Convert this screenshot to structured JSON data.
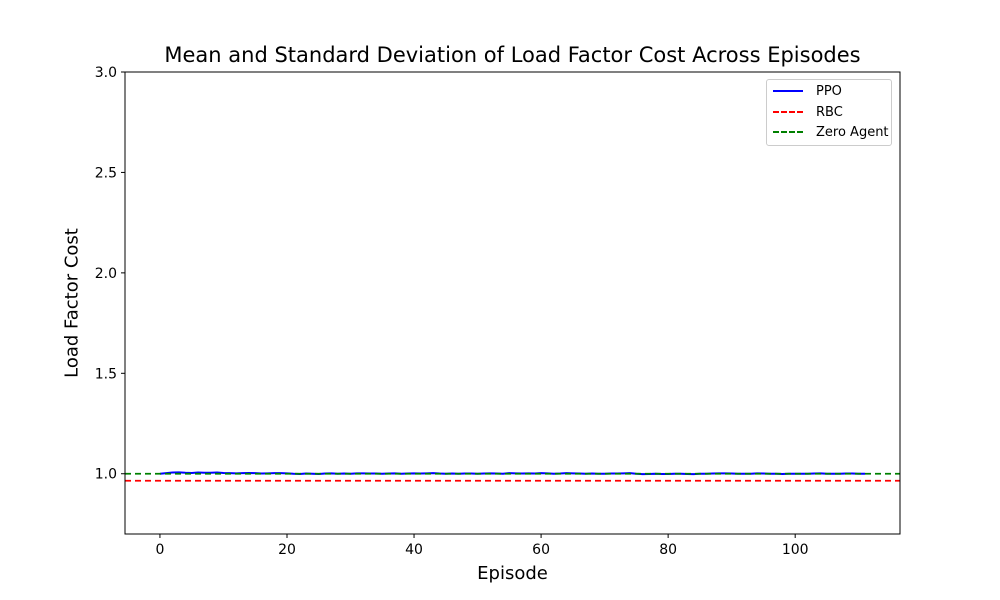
{
  "chart_data": {
    "type": "line",
    "title": "Mean and Standard Deviation of Load Factor Cost Across Episodes",
    "xlabel": "Episode",
    "ylabel": "Load Factor Cost",
    "xlim": [
      -5.5,
      116.5
    ],
    "ylim": [
      0.7,
      3.0
    ],
    "xticks": [
      0,
      20,
      40,
      60,
      80,
      100
    ],
    "xtick_labels": [
      "0",
      "20",
      "40",
      "60",
      "80",
      "100"
    ],
    "yticks": [
      1.0,
      1.5,
      2.0,
      2.5,
      3.0
    ],
    "ytick_labels": [
      "1.0",
      "1.5",
      "2.0",
      "2.5",
      "3.0"
    ],
    "grid": false,
    "legend_position": "top-right",
    "series": [
      {
        "name": "PPO",
        "color": "#0000ff",
        "style": "solid",
        "x": [
          0,
          1,
          2,
          3,
          4,
          5,
          6,
          7,
          8,
          9,
          10,
          11,
          12,
          13,
          14,
          15,
          16,
          17,
          18,
          19,
          20,
          21,
          22,
          23,
          24,
          25,
          26,
          27,
          28,
          29,
          30,
          31,
          32,
          33,
          34,
          35,
          36,
          37,
          38,
          39,
          40,
          41,
          42,
          43,
          44,
          45,
          46,
          47,
          48,
          49,
          50,
          51,
          52,
          53,
          54,
          55,
          56,
          57,
          58,
          59,
          60,
          61,
          62,
          63,
          64,
          65,
          66,
          67,
          68,
          69,
          70,
          71,
          72,
          73,
          74,
          75,
          76,
          77,
          78,
          79,
          80,
          81,
          82,
          83,
          84,
          85,
          86,
          87,
          88,
          89,
          90,
          91,
          92,
          93,
          94,
          95,
          96,
          97,
          98,
          99,
          100,
          101,
          102,
          103,
          104,
          105,
          106,
          107,
          108,
          109,
          110,
          111
        ],
        "values": [
          1.0,
          1.003,
          1.006,
          1.007,
          1.005,
          1.004,
          1.006,
          1.005,
          1.005,
          1.006,
          1.004,
          1.003,
          1.002,
          1.003,
          1.004,
          1.003,
          1.001,
          1.002,
          1.003,
          1.003,
          1.002,
          1.0,
          0.999,
          1.001,
          1.0,
          0.999,
          1.001,
          1.002,
          1.0,
          1.001,
          1.0,
          1.002,
          1.002,
          1.001,
          1.001,
          1.0,
          1.001,
          1.002,
          1.0,
          1.001,
          1.002,
          1.001,
          1.002,
          1.003,
          1.001,
          1.0,
          1.001,
          1.0,
          1.001,
          1.001,
          1.0,
          1.001,
          1.002,
          1.001,
          1.0,
          1.003,
          1.002,
          1.001,
          1.002,
          1.001,
          1.003,
          1.002,
          1.0,
          1.001,
          1.003,
          1.002,
          1.001,
          1.0,
          1.001,
          1.0,
          1.0,
          1.001,
          1.001,
          1.002,
          1.003,
          1.0,
          0.998,
          0.999,
          1.0,
          0.999,
          0.999,
          1.0,
          1.0,
          0.999,
          0.998,
          1.0,
          1.0,
          1.001,
          1.002,
          1.002,
          1.001,
          1.0,
          1.0,
          1.0,
          1.002,
          1.001,
          1.0,
          1.0,
          0.999,
          1.0,
          1.0,
          1.0,
          1.0,
          1.001,
          1.002,
          1.0,
          1.0,
          1.0,
          1.001,
          1.001,
          1.0,
          1.0
        ]
      },
      {
        "name": "RBC",
        "color": "#ff0000",
        "style": "dashed",
        "constant": 0.965
      },
      {
        "name": "Zero Agent",
        "color": "#008000",
        "style": "dashed",
        "constant": 1.0
      }
    ]
  }
}
